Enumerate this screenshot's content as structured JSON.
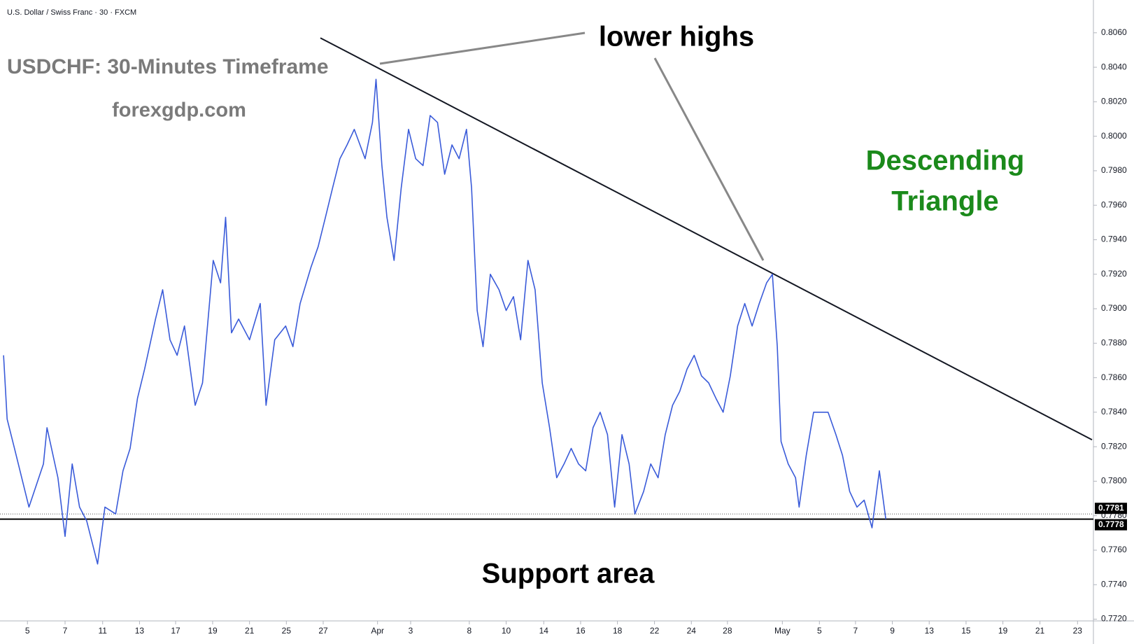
{
  "chart_data": {
    "type": "line",
    "title": "U.S. Dollar / Swiss Franc · 30 · FXCM",
    "annotations": {
      "timeframe": "USDCHF: 30-Minutes Timeframe",
      "site": "forexgdp.com",
      "lower_highs": "lower highs",
      "pattern": [
        "Descending",
        "Triangle"
      ],
      "support": "Support area"
    },
    "color": "#3a5bd9",
    "x": [
      -1.27,
      -1.08,
      -0.69,
      0.08,
      0.85,
      1.04,
      1.62,
      2.0,
      2.38,
      2.77,
      3.15,
      3.73,
      4.12,
      4.69,
      5.08,
      5.46,
      5.85,
      6.23,
      6.81,
      7.19,
      7.58,
      7.96,
      8.35,
      8.92,
      9.31,
      9.88,
      10.27,
      10.54,
      10.85,
      11.23,
      11.81,
      12.38,
      12.69,
      13.15,
      13.73,
      14.12,
      14.5,
      15.08,
      15.46,
      15.85,
      16.23,
      16.62,
      17.0,
      17.38,
      17.96,
      18.35,
      18.54,
      18.85,
      19.12,
      19.5,
      19.88,
      20.27,
      20.65,
      21.04,
      21.42,
      21.81,
      22.19,
      22.58,
      22.96,
      23.35,
      23.62,
      23.92,
      24.23,
      24.62,
      25.08,
      25.46,
      25.85,
      26.23,
      26.62,
      27.0,
      27.38,
      27.77,
      28.15,
      28.54,
      28.92,
      29.31,
      29.69,
      30.08,
      30.46,
      30.85,
      31.23,
      31.62,
      32.0,
      32.31,
      32.77,
      33.15,
      33.54,
      33.92,
      34.31,
      34.69,
      35.08,
      35.46,
      35.85,
      36.23,
      36.62,
      37.0,
      37.38,
      37.77,
      38.15,
      38.54,
      38.92,
      39.31,
      39.62,
      39.88,
      40.08,
      40.46,
      40.85,
      41.04,
      41.42,
      41.81,
      42.19,
      42.58,
      43.0,
      43.35,
      43.73,
      44.12,
      44.5,
      44.92,
      45.31,
      45.65
    ],
    "values": [
      0.7873,
      0.7836,
      0.7819,
      0.7785,
      0.781,
      0.7831,
      0.7802,
      0.7768,
      0.781,
      0.7785,
      0.7777,
      0.7752,
      0.7785,
      0.7781,
      0.7806,
      0.7819,
      0.7848,
      0.7865,
      0.7894,
      0.7911,
      0.7882,
      0.7873,
      0.789,
      0.7844,
      0.7857,
      0.7928,
      0.7915,
      0.7953,
      0.7886,
      0.7894,
      0.7882,
      0.7903,
      0.7844,
      0.7882,
      0.789,
      0.7878,
      0.7903,
      0.7924,
      0.7936,
      0.7953,
      0.797,
      0.7987,
      0.7995,
      0.8004,
      0.7987,
      0.8008,
      0.8033,
      0.7983,
      0.7953,
      0.7928,
      0.797,
      0.8004,
      0.7987,
      0.7983,
      0.8012,
      0.8008,
      0.7978,
      0.7995,
      0.7987,
      0.8004,
      0.797,
      0.7899,
      0.7878,
      0.792,
      0.7911,
      0.7899,
      0.7907,
      0.7882,
      0.7928,
      0.7911,
      0.7857,
      0.7831,
      0.7802,
      0.781,
      0.7819,
      0.781,
      0.7806,
      0.7831,
      0.784,
      0.7827,
      0.7785,
      0.7827,
      0.781,
      0.7781,
      0.7794,
      0.781,
      0.7802,
      0.7827,
      0.7844,
      0.7852,
      0.7865,
      0.7873,
      0.7861,
      0.7857,
      0.7848,
      0.784,
      0.7861,
      0.789,
      0.7903,
      0.789,
      0.7903,
      0.7915,
      0.792,
      0.7878,
      0.7823,
      0.781,
      0.7802,
      0.7785,
      0.7815,
      0.784,
      0.784,
      0.784,
      0.7827,
      0.7815,
      0.7794,
      0.7785,
      0.7789,
      0.7773,
      0.7806,
      0.7778
    ],
    "xlim": [
      -1.46,
      56.62
    ],
    "xticks": [
      {
        "value": 0,
        "label": "5"
      },
      {
        "value": 2,
        "label": "7"
      },
      {
        "value": 4,
        "label": "11"
      },
      {
        "value": 5.96,
        "label": "13"
      },
      {
        "value": 7.88,
        "label": "17"
      },
      {
        "value": 9.85,
        "label": "19"
      },
      {
        "value": 11.81,
        "label": "21"
      },
      {
        "value": 13.77,
        "label": "25"
      },
      {
        "value": 15.73,
        "label": "27"
      },
      {
        "value": 18.62,
        "label": "Apr"
      },
      {
        "value": 20.38,
        "label": "3"
      },
      {
        "value": 23.5,
        "label": "8"
      },
      {
        "value": 25.46,
        "label": "10"
      },
      {
        "value": 27.46,
        "label": "14"
      },
      {
        "value": 29.42,
        "label": "16"
      },
      {
        "value": 31.38,
        "label": "18"
      },
      {
        "value": 33.35,
        "label": "22"
      },
      {
        "value": 35.31,
        "label": "24"
      },
      {
        "value": 37.23,
        "label": "28"
      },
      {
        "value": 40.15,
        "label": "May"
      },
      {
        "value": 42.12,
        "label": "5"
      },
      {
        "value": 44.04,
        "label": "7"
      },
      {
        "value": 46.0,
        "label": "9"
      },
      {
        "value": 47.96,
        "label": "13"
      },
      {
        "value": 49.92,
        "label": "15"
      },
      {
        "value": 51.88,
        "label": "19"
      },
      {
        "value": 53.85,
        "label": "21"
      },
      {
        "value": 55.85,
        "label": "23"
      }
    ],
    "ylim": [
      0.7719,
      0.8079
    ],
    "yticks": [
      {
        "value": 0.772,
        "label": "0.7720"
      },
      {
        "value": 0.774,
        "label": "0.7740"
      },
      {
        "value": 0.776,
        "label": "0.7760"
      },
      {
        "value": 0.778,
        "label": "0.7780"
      },
      {
        "value": 0.78,
        "label": "0.7800"
      },
      {
        "value": 0.782,
        "label": "0.7820"
      },
      {
        "value": 0.784,
        "label": "0.7840"
      },
      {
        "value": 0.786,
        "label": "0.7860"
      },
      {
        "value": 0.788,
        "label": "0.7880"
      },
      {
        "value": 0.79,
        "label": "0.7900"
      },
      {
        "value": 0.792,
        "label": "0.7920"
      },
      {
        "value": 0.794,
        "label": "0.7940"
      },
      {
        "value": 0.796,
        "label": "0.7960"
      },
      {
        "value": 0.798,
        "label": "0.7980"
      },
      {
        "value": 0.8,
        "label": "0.8000"
      },
      {
        "value": 0.802,
        "label": "0.8020"
      },
      {
        "value": 0.804,
        "label": "0.8040"
      },
      {
        "value": 0.806,
        "label": "0.8060"
      }
    ],
    "price_labels": [
      {
        "value": 0.7781,
        "label": "0.7781"
      },
      {
        "value": 0.7778,
        "label": "0.7778"
      }
    ],
    "trendline": {
      "x": [
        15.58,
        56.62
      ],
      "y": [
        0.8057,
        0.7824
      ]
    }
  }
}
